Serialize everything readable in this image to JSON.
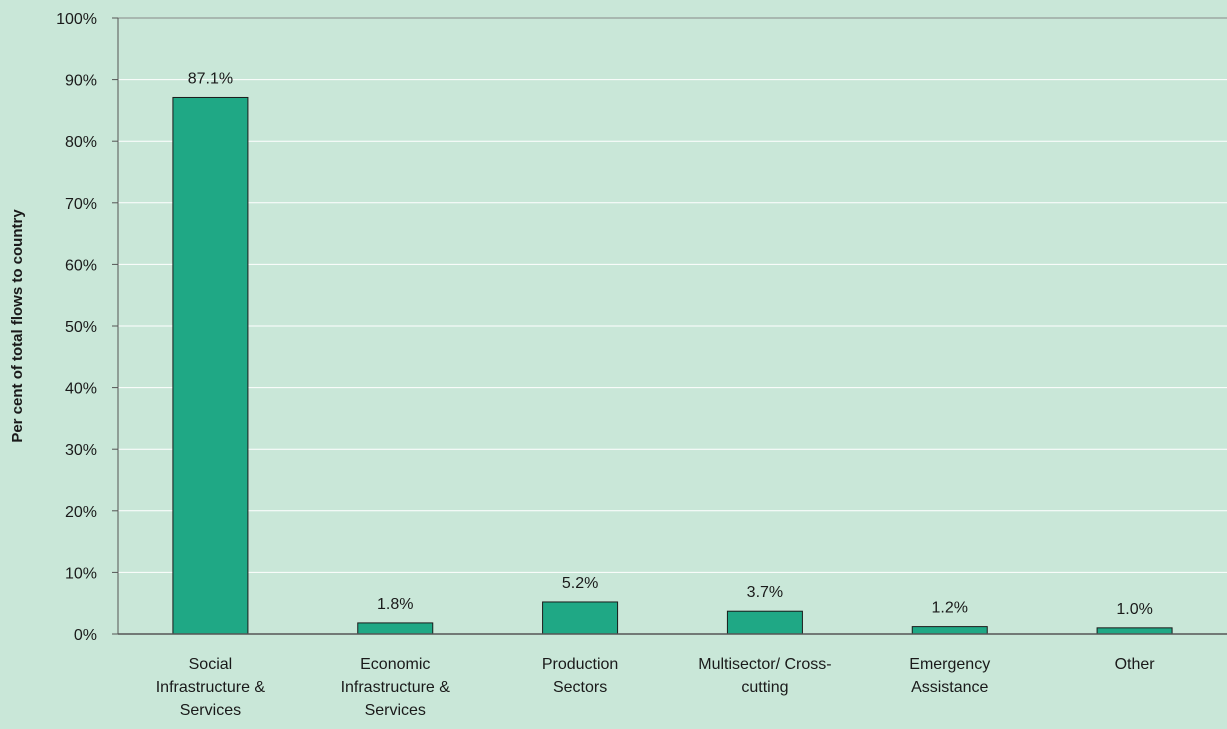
{
  "chart_data": {
    "type": "bar",
    "title": "",
    "xlabel": "",
    "ylabel": "Per cent of total flows to country",
    "ylim": [
      0,
      100
    ],
    "y_ticks": [
      "0%",
      "10%",
      "20%",
      "30%",
      "40%",
      "50%",
      "60%",
      "70%",
      "80%",
      "90%",
      "100%"
    ],
    "y_tick_values": [
      0,
      10,
      20,
      30,
      40,
      50,
      60,
      70,
      80,
      90,
      100
    ],
    "grid": true,
    "categories": [
      [
        "Social",
        "Infrastructure &",
        "Services"
      ],
      [
        "Economic",
        "Infrastructure &",
        "Services"
      ],
      [
        "Production",
        "Sectors"
      ],
      [
        "Multisector/ Cross-",
        "cutting"
      ],
      [
        "Emergency",
        "Assistance"
      ],
      [
        "Other"
      ]
    ],
    "values": [
      87.1,
      1.8,
      5.2,
      3.7,
      1.2,
      1.0
    ],
    "data_labels": [
      "87.1%",
      "1.8%",
      "5.2%",
      "3.7%",
      "1.2%",
      "1.0%"
    ],
    "colors": {
      "bar_fill": "#1fa885",
      "bar_stroke": "#1a1a1a",
      "background": "#c9e7d8",
      "grid": "#ffffff",
      "axis": "#555555"
    }
  }
}
